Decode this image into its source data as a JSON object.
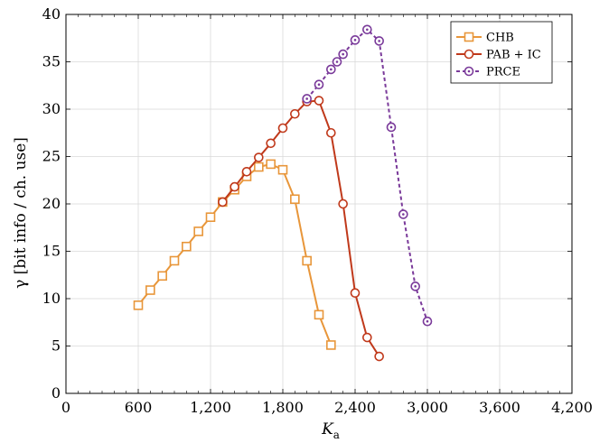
{
  "chart_data": {
    "type": "line",
    "title": "",
    "xlabel": "K",
    "xlabel_sub": "a",
    "ylabel": "γ [bit info / ch. use]",
    "xlim": [
      0,
      4200
    ],
    "ylim": [
      0,
      40
    ],
    "xticks": [
      0,
      600,
      1200,
      1800,
      2400,
      3000,
      3600,
      4200
    ],
    "xtick_labels": [
      "0",
      "600",
      "1,200",
      "1,800",
      "2,400",
      "3,000",
      "3,600",
      "4,200"
    ],
    "yticks": [
      0,
      5,
      10,
      15,
      20,
      25,
      30,
      35,
      40
    ],
    "ytick_labels": [
      "0",
      "5",
      "10",
      "15",
      "20",
      "25",
      "30",
      "35",
      "40"
    ],
    "grid": true,
    "legend_position": "top-right",
    "series": [
      {
        "name": "CHB",
        "color": "#E8963A",
        "marker": "square",
        "dash": "solid",
        "x": [
          600,
          700,
          800,
          900,
          1000,
          1100,
          1200,
          1300,
          1400,
          1500,
          1600,
          1700,
          1800,
          1900,
          2000,
          2100,
          2200
        ],
        "y": [
          9.3,
          10.9,
          12.4,
          14.0,
          15.5,
          17.1,
          18.6,
          20.2,
          21.5,
          22.9,
          23.9,
          24.2,
          23.6,
          20.5,
          14.0,
          8.3,
          5.1
        ]
      },
      {
        "name": "PAB + IC",
        "color": "#C0391B",
        "marker": "circle",
        "dash": "solid",
        "x": [
          1300,
          1400,
          1500,
          1600,
          1700,
          1800,
          1900,
          2000,
          2100,
          2200,
          2300,
          2400,
          2500,
          2600
        ],
        "y": [
          20.2,
          21.8,
          23.4,
          24.9,
          26.4,
          28.0,
          29.5,
          30.8,
          30.9,
          27.5,
          20.0,
          10.6,
          5.9,
          3.9
        ]
      },
      {
        "name": "PRCE",
        "color": "#7A3A9A",
        "marker": "circle-dot",
        "dash": "dashed",
        "x": [
          2000,
          2100,
          2200,
          2250,
          2300,
          2400,
          2500,
          2600,
          2700,
          2800,
          2900,
          3000
        ],
        "y": [
          31.1,
          32.6,
          34.2,
          35.0,
          35.8,
          37.3,
          38.4,
          37.2,
          28.1,
          18.9,
          11.3,
          7.6
        ]
      }
    ]
  }
}
